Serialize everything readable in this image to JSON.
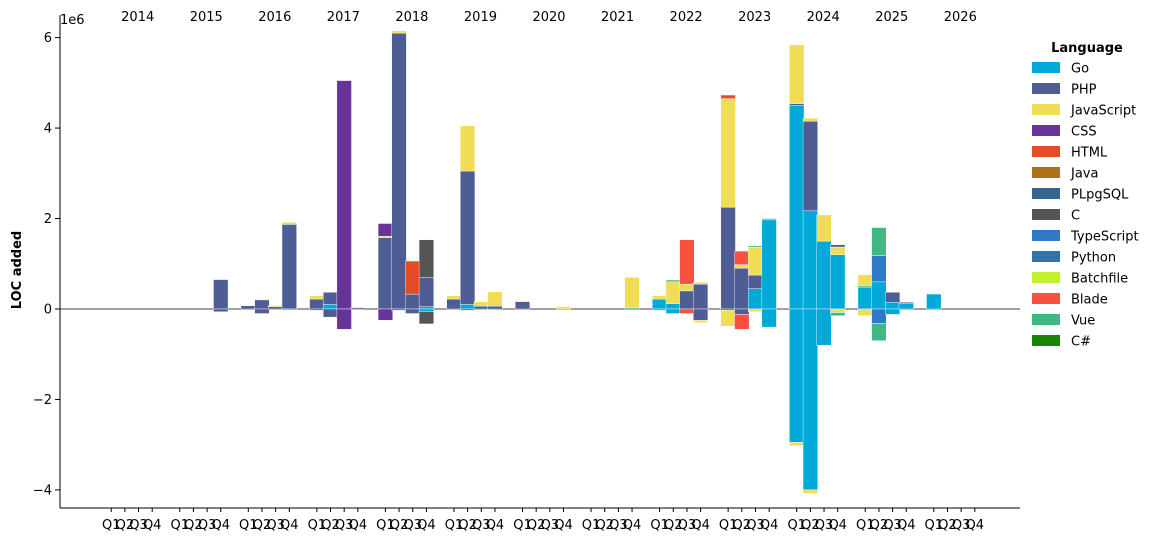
{
  "chart_data": {
    "type": "bar",
    "stacked": "diverging",
    "ylabel": "LOC added",
    "y_multiplier_label": "1e6",
    "ylim": [
      -4.4,
      6.5
    ],
    "yticks": [
      -4,
      -2,
      0,
      2,
      4,
      6
    ],
    "ytick_labels": [
      "−4",
      "−2",
      "0",
      "2",
      "4",
      "6"
    ],
    "years": [
      "2014",
      "2015",
      "2016",
      "2017",
      "2018",
      "2019",
      "2020",
      "2021",
      "2022",
      "2023",
      "2024",
      "2025",
      "2026"
    ],
    "quarter_labels": [
      "Q1",
      "Q2",
      "Q3",
      "Q4"
    ],
    "legend": {
      "title": "Language",
      "position": "upper-right-outside",
      "entries": [
        {
          "name": "Go",
          "color": "#00a9d8"
        },
        {
          "name": "PHP",
          "color": "#4f5d95"
        },
        {
          "name": "JavaScript",
          "color": "#f0dc55"
        },
        {
          "name": "CSS",
          "color": "#663399"
        },
        {
          "name": "HTML",
          "color": "#e34c26"
        },
        {
          "name": "Java",
          "color": "#b07219"
        },
        {
          "name": "PLpgSQL",
          "color": "#336790"
        },
        {
          "name": "C",
          "color": "#555555"
        },
        {
          "name": "TypeScript",
          "color": "#3178c6"
        },
        {
          "name": "Python",
          "color": "#3572a5"
        },
        {
          "name": "Batchfile",
          "color": "#c1f12e"
        },
        {
          "name": "Blade",
          "color": "#f7523f"
        },
        {
          "name": "Vue",
          "color": "#41b883"
        },
        {
          "name": "C#",
          "color": "#178600"
        }
      ]
    },
    "bars": [
      {
        "year": "2015",
        "quarter": "Q4",
        "pos": [
          [
            "PHP",
            0.65
          ]
        ],
        "neg": [
          [
            "PHP",
            -0.06
          ]
        ]
      },
      {
        "year": "2016",
        "quarter": "Q1",
        "pos": [
          [
            "PHP",
            0.07
          ]
        ],
        "neg": []
      },
      {
        "year": "2016",
        "quarter": "Q2",
        "pos": [
          [
            "PHP",
            0.2
          ]
        ],
        "neg": [
          [
            "PHP",
            -0.1
          ]
        ]
      },
      {
        "year": "2016",
        "quarter": "Q3",
        "pos": [
          [
            "PHP",
            0.05
          ],
          [
            "JavaScript",
            0.03
          ]
        ],
        "neg": []
      },
      {
        "year": "2016",
        "quarter": "Q4",
        "pos": [
          [
            "PHP",
            1.87
          ],
          [
            "JavaScript",
            0.05
          ]
        ],
        "neg": [
          [
            "PHP",
            -0.02
          ]
        ]
      },
      {
        "year": "2017",
        "quarter": "Q1",
        "pos": [
          [
            "PHP",
            0.22
          ],
          [
            "JavaScript",
            0.07
          ]
        ],
        "neg": [
          [
            "PHP",
            -0.03
          ]
        ]
      },
      {
        "year": "2017",
        "quarter": "Q2",
        "pos": [
          [
            "Go",
            0.1
          ],
          [
            "PHP",
            0.27
          ]
        ],
        "neg": [
          [
            "PHP",
            -0.18
          ]
        ]
      },
      {
        "year": "2017",
        "quarter": "Q3",
        "pos": [
          [
            "CSS",
            5.05
          ]
        ],
        "neg": [
          [
            "CSS",
            -0.45
          ]
        ]
      },
      {
        "year": "2017",
        "quarter": "Q4",
        "pos": [
          [
            "PHP",
            0.03
          ]
        ],
        "neg": []
      },
      {
        "year": "2018",
        "quarter": "Q1",
        "pos": [
          [
            "PHP",
            1.58
          ],
          [
            "JavaScript",
            0.03
          ],
          [
            "CSS",
            0.28
          ]
        ],
        "neg": [
          [
            "CSS",
            -0.25
          ]
        ]
      },
      {
        "year": "2018",
        "quarter": "Q2",
        "pos": [
          [
            "PHP",
            6.1
          ],
          [
            "JavaScript",
            0.05
          ]
        ],
        "neg": [
          [
            "PHP",
            -0.03
          ]
        ]
      },
      {
        "year": "2018",
        "quarter": "Q3",
        "pos": [
          [
            "PHP",
            0.33
          ],
          [
            "HTML",
            0.73
          ]
        ],
        "neg": [
          [
            "PHP",
            -0.1
          ]
        ]
      },
      {
        "year": "2018",
        "quarter": "Q4",
        "pos": [
          [
            "Go",
            0.05
          ],
          [
            "PHP",
            0.65
          ],
          [
            "C",
            0.83
          ]
        ],
        "neg": [
          [
            "Go",
            -0.06
          ],
          [
            "C",
            -0.27
          ]
        ]
      },
      {
        "year": "2019",
        "quarter": "Q1",
        "pos": [
          [
            "PHP",
            0.22
          ],
          [
            "JavaScript",
            0.07
          ]
        ],
        "neg": []
      },
      {
        "year": "2019",
        "quarter": "Q2",
        "pos": [
          [
            "Go",
            0.1
          ],
          [
            "PHP",
            2.95
          ],
          [
            "JavaScript",
            1.0
          ]
        ],
        "neg": [
          [
            "PHP",
            -0.03
          ]
        ]
      },
      {
        "year": "2019",
        "quarter": "Q3",
        "pos": [
          [
            "PLpgSQL",
            0.06
          ],
          [
            "JavaScript",
            0.1
          ]
        ],
        "neg": []
      },
      {
        "year": "2019",
        "quarter": "Q4",
        "pos": [
          [
            "PLpgSQL",
            0.06
          ],
          [
            "JavaScript",
            0.32
          ]
        ],
        "neg": []
      },
      {
        "year": "2020",
        "quarter": "Q1",
        "pos": [
          [
            "PHP",
            0.16
          ],
          [
            "JavaScript",
            0.02
          ]
        ],
        "neg": []
      },
      {
        "year": "2020",
        "quarter": "Q4",
        "pos": [
          [
            "JavaScript",
            0.05
          ]
        ],
        "neg": []
      },
      {
        "year": "2021",
        "quarter": "Q4",
        "pos": [
          [
            "Vue",
            0.03
          ],
          [
            "JavaScript",
            0.67
          ]
        ],
        "neg": []
      },
      {
        "year": "2022",
        "quarter": "Q1",
        "pos": [
          [
            "Go",
            0.22
          ],
          [
            "JavaScript",
            0.07
          ]
        ],
        "neg": [
          [
            "Go",
            -0.03
          ]
        ]
      },
      {
        "year": "2022",
        "quarter": "Q2",
        "pos": [
          [
            "Go",
            0.12
          ],
          [
            "JavaScript",
            0.48
          ],
          [
            "Vue",
            0.04
          ]
        ],
        "neg": [
          [
            "Go",
            -0.1
          ]
        ]
      },
      {
        "year": "2022",
        "quarter": "Q3",
        "pos": [
          [
            "PHP",
            0.4
          ],
          [
            "JavaScript",
            0.15
          ],
          [
            "Blade",
            0.98
          ]
        ],
        "neg": [
          [
            "Blade",
            -0.1
          ]
        ]
      },
      {
        "year": "2022",
        "quarter": "Q4",
        "pos": [
          [
            "PHP",
            0.55
          ],
          [
            "JavaScript",
            0.04
          ]
        ],
        "neg": [
          [
            "PHP",
            -0.25
          ],
          [
            "JavaScript",
            -0.05
          ]
        ]
      },
      {
        "year": "2023",
        "quarter": "Q1",
        "pos": [
          [
            "PHP",
            2.25
          ],
          [
            "JavaScript",
            2.4
          ],
          [
            "HTML",
            0.08
          ]
        ],
        "neg": [
          [
            "PHP",
            -0.03
          ],
          [
            "JavaScript",
            -0.35
          ]
        ]
      },
      {
        "year": "2023",
        "quarter": "Q2",
        "pos": [
          [
            "PHP",
            0.9
          ],
          [
            "JavaScript",
            0.08
          ],
          [
            "Blade",
            0.3
          ]
        ],
        "neg": [
          [
            "PHP",
            -0.12
          ],
          [
            "Blade",
            -0.33
          ]
        ]
      },
      {
        "year": "2023",
        "quarter": "Q3",
        "pos": [
          [
            "Go",
            0.45
          ],
          [
            "PHP",
            0.3
          ],
          [
            "JavaScript",
            0.62
          ],
          [
            "Vue",
            0.03
          ]
        ],
        "neg": [
          [
            "JavaScript",
            -0.06
          ]
        ]
      },
      {
        "year": "2023",
        "quarter": "Q4",
        "pos": [
          [
            "Go",
            1.97
          ],
          [
            "Vue",
            0.03
          ]
        ],
        "neg": [
          [
            "Go",
            -0.4
          ]
        ]
      },
      {
        "year": "2024",
        "quarter": "Q1",
        "pos": [
          [
            "Go",
            4.5
          ],
          [
            "PHP",
            0.04
          ],
          [
            "JavaScript",
            1.3
          ]
        ],
        "neg": [
          [
            "Go",
            -2.95
          ],
          [
            "JavaScript",
            -0.07
          ]
        ]
      },
      {
        "year": "2024",
        "quarter": "Q2",
        "pos": [
          [
            "Go",
            2.17
          ],
          [
            "PHP",
            1.98
          ],
          [
            "JavaScript",
            0.07
          ]
        ],
        "neg": [
          [
            "Go",
            -4.0
          ],
          [
            "JavaScript",
            -0.08
          ]
        ]
      },
      {
        "year": "2024",
        "quarter": "Q3",
        "pos": [
          [
            "Go",
            1.5
          ],
          [
            "JavaScript",
            0.58
          ]
        ],
        "neg": [
          [
            "Go",
            -0.8
          ]
        ]
      },
      {
        "year": "2024",
        "quarter": "Q4",
        "pos": [
          [
            "Go",
            1.2
          ],
          [
            "JavaScript",
            0.17
          ],
          [
            "PHP",
            0.05
          ]
        ],
        "neg": [
          [
            "JavaScript",
            -0.08
          ],
          [
            "Vue",
            -0.07
          ]
        ]
      },
      {
        "year": "2025",
        "quarter": "Q1",
        "pos": [
          [
            "Go",
            0.48
          ],
          [
            "Vue",
            0.03
          ],
          [
            "JavaScript",
            0.25
          ]
        ],
        "neg": [
          [
            "JavaScript",
            -0.15
          ]
        ]
      },
      {
        "year": "2025",
        "quarter": "Q2",
        "pos": [
          [
            "Go",
            0.6
          ],
          [
            "TypeScript",
            0.58
          ],
          [
            "Vue",
            0.62
          ]
        ],
        "neg": [
          [
            "TypeScript",
            -0.32
          ],
          [
            "Vue",
            -0.38
          ]
        ]
      },
      {
        "year": "2025",
        "quarter": "Q3",
        "pos": [
          [
            "Go",
            0.15
          ],
          [
            "PHP",
            0.22
          ]
        ],
        "neg": [
          [
            "Go",
            -0.12
          ]
        ]
      },
      {
        "year": "2025",
        "quarter": "Q4",
        "pos": [
          [
            "Go",
            0.12
          ],
          [
            "PHP",
            0.03
          ]
        ],
        "neg": []
      },
      {
        "year": "2026",
        "quarter": "Q1",
        "pos": [
          [
            "Go",
            0.33
          ]
        ],
        "neg": []
      }
    ]
  }
}
